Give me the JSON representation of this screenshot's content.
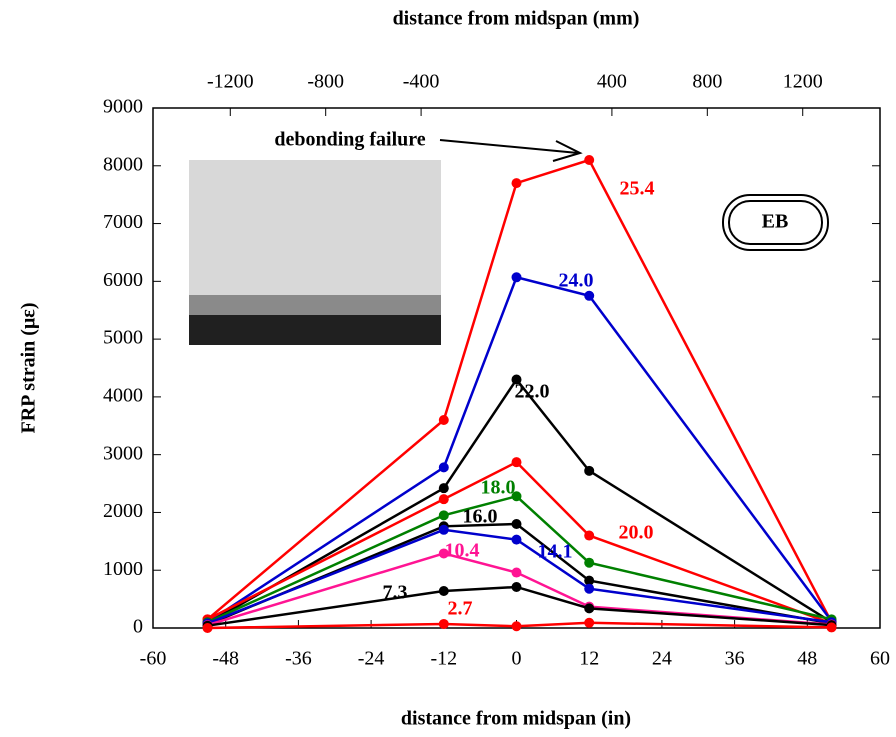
{
  "chart_data": {
    "type": "line",
    "title": "distance from midspan (mm)",
    "xlabel": "distance from midspan (in)",
    "ylabel": "FRP strain (με)",
    "xlim": [
      -60,
      60
    ],
    "xticks": [
      -60,
      -48,
      -36,
      -24,
      -12,
      0,
      12,
      24,
      36,
      48,
      60
    ],
    "x2lim": [
      -1524,
      1524
    ],
    "x2ticks": [
      -1200,
      -800,
      -400,
      400,
      800,
      1200
    ],
    "ylim": [
      0,
      9000
    ],
    "yticks": [
      0,
      1000,
      2000,
      3000,
      4000,
      5000,
      6000,
      7000,
      8000,
      9000
    ],
    "x": [
      -51,
      -12,
      0,
      12,
      52
    ],
    "series": [
      {
        "name": "25.4",
        "color": "#ff0000",
        "values": [
          150,
          3600,
          7700,
          8100,
          100
        ]
      },
      {
        "name": "24.0",
        "color": "#0000cc",
        "values": [
          100,
          2780,
          6070,
          5750,
          120
        ]
      },
      {
        "name": "22.0",
        "color": "#000000",
        "values": [
          80,
          2420,
          4300,
          2720,
          100
        ]
      },
      {
        "name": "20.0",
        "color": "#ff0000",
        "values": [
          150,
          2230,
          2870,
          1600,
          80
        ]
      },
      {
        "name": "18.0",
        "color": "#008000",
        "values": [
          100,
          1950,
          2280,
          1130,
          150
        ]
      },
      {
        "name": "16.0",
        "color": "#000000",
        "values": [
          60,
          1760,
          1800,
          820,
          80
        ]
      },
      {
        "name": "14.1",
        "color": "#0000cc",
        "values": [
          80,
          1700,
          1530,
          680,
          100
        ]
      },
      {
        "name": "10.4",
        "color": "#ff1493",
        "values": [
          50,
          1290,
          960,
          370,
          60
        ]
      },
      {
        "name": "7.3",
        "color": "#000000",
        "values": [
          40,
          640,
          710,
          340,
          50
        ]
      },
      {
        "name": "2.7",
        "color": "#ff0000",
        "values": [
          0,
          70,
          30,
          90,
          10
        ]
      }
    ],
    "annotations": [
      "debonding failure",
      "EB"
    ]
  }
}
